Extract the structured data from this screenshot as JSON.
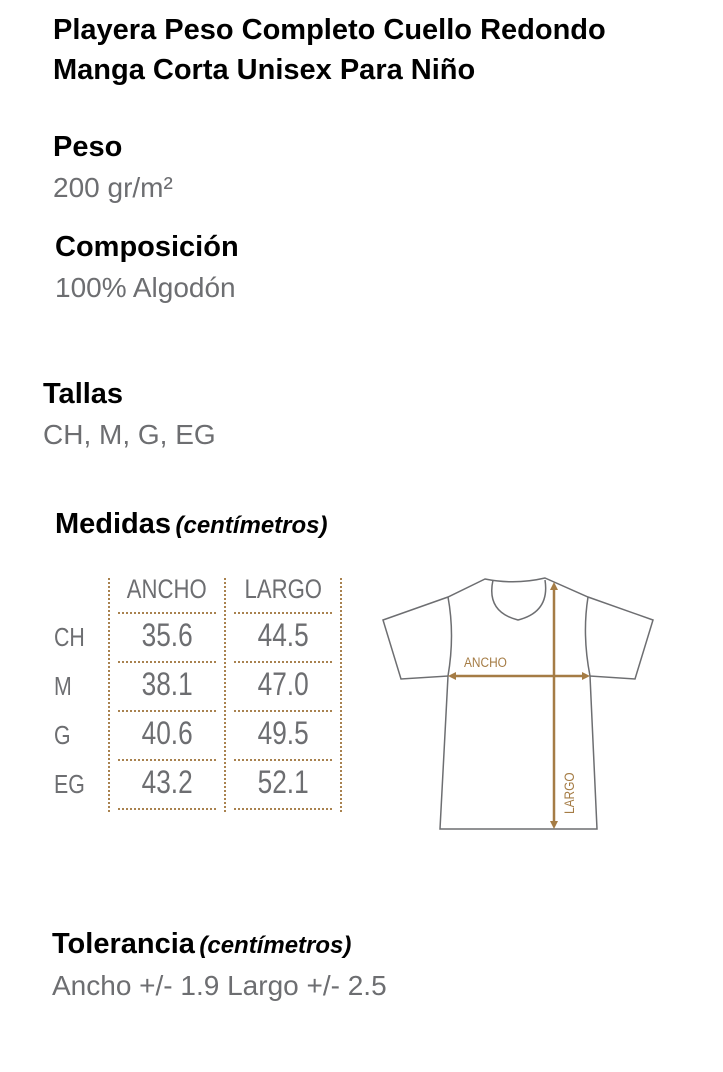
{
  "product": {
    "title_line1": "Playera Peso Completo Cuello Redondo",
    "title_line2": "Manga Corta Unisex Para Niño"
  },
  "peso": {
    "label": "Peso",
    "value": "200 gr/m²"
  },
  "composicion": {
    "label": "Composición",
    "value": "100% Algodón"
  },
  "tallas": {
    "label": "Tallas",
    "value": "CH, M, G, EG"
  },
  "medidas": {
    "label": "Medidas",
    "unit": "(centímetros)",
    "columns": [
      "ANCHO",
      "LARGO"
    ],
    "rows": [
      {
        "size": "CH",
        "ancho": "35.6",
        "largo": "44.5"
      },
      {
        "size": "M",
        "ancho": "38.1",
        "largo": "47.0"
      },
      {
        "size": "G",
        "ancho": "40.6",
        "largo": "49.5"
      },
      {
        "size": "EG",
        "ancho": "43.2",
        "largo": "52.1"
      }
    ]
  },
  "diagram": {
    "ancho_label": "ANCHO",
    "largo_label": "LARGO",
    "accent_color": "#a57c45",
    "outline_color": "#6d6e71"
  },
  "tolerancia": {
    "label": "Tolerancia",
    "unit": "(centímetros)",
    "value": "Ancho +/- 1.9 Largo +/- 2.5"
  }
}
